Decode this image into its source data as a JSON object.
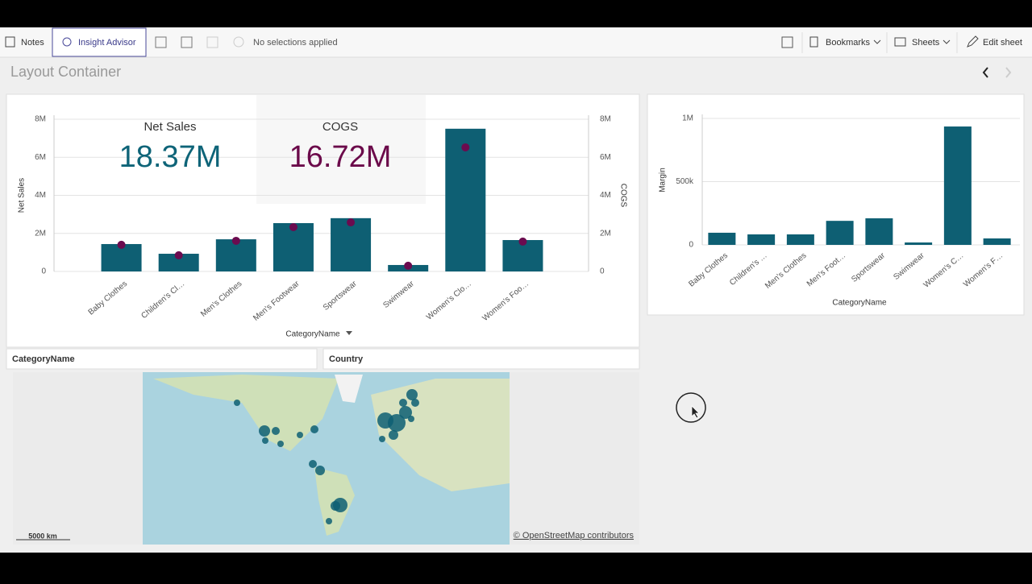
{
  "toolbar": {
    "notes": "Notes",
    "insight_advisor": "Insight Advisor",
    "selections": "No selections applied",
    "bookmarks": "Bookmarks",
    "sheets": "Sheets",
    "edit_sheet": "Edit sheet"
  },
  "sheet": {
    "title": "Layout Container"
  },
  "chart_data": [
    {
      "type": "combo",
      "x_label": "CategoryName",
      "categories": [
        "Baby Clothes",
        "Children's Cl…",
        "Men's Clothes",
        "Men's Footwear",
        "Sportswear",
        "Swimwear",
        "Women's Clo…",
        "Women's Foo…"
      ],
      "series": [
        {
          "name": "Net Sales",
          "type": "bar",
          "color": "#0e5f73",
          "values": [
            1440000,
            930000,
            1690000,
            2540000,
            2800000,
            340000,
            7500000,
            1650000
          ]
        },
        {
          "name": "COGS",
          "type": "marker",
          "axis": "y2",
          "color": "#6b0b4f",
          "values": [
            1400000,
            850000,
            1610000,
            2330000,
            2580000,
            300000,
            6520000,
            1570000
          ]
        }
      ],
      "kpis": [
        {
          "value": 18370000,
          "value_label": "18.37M",
          "color": "#0e6478"
        },
        {
          "value": 16720000,
          "value_label": "16.72M",
          "color": "#6b0a4a"
        }
      ],
      "ylim": [
        0,
        8000000
      ],
      "yticks": [
        0,
        {
          "value": 2000000,
          "label": "2M"
        },
        {
          "value": 4000000,
          "label": "4M"
        },
        {
          "value": 6000000,
          "label": "6M"
        },
        {
          "value": 8000000,
          "label": "8M"
        }
      ],
      "y2lim": [
        0,
        8000000
      ],
      "y2ticks": [
        0,
        {
          "value": 2000000,
          "label": "2M"
        },
        {
          "value": 4000000,
          "label": "4M"
        },
        {
          "value": 6000000,
          "label": "6M"
        },
        {
          "value": 8000000,
          "label": "8M"
        }
      ],
      "grid": true
    },
    {
      "type": "bar",
      "y_label": "Margin",
      "x_label": "CategoryName",
      "categories": [
        "Baby Clothes",
        "Children's …",
        "Men's Clothes",
        "Men's Foot…",
        "Sportswear",
        "Swimwear",
        "Women's C…",
        "Women's F…"
      ],
      "values": [
        96000,
        83000,
        83000,
        190000,
        210000,
        19000,
        936000,
        51000
      ],
      "color": "#0e5f73",
      "ylim": [
        0,
        1000000
      ],
      "yticks": [
        0,
        {
          "value": 500000,
          "label": "500k"
        },
        {
          "value": 1000000,
          "label": "1M"
        }
      ],
      "grid": true
    }
  ],
  "filters": [
    "CategoryName",
    "Country"
  ],
  "map": {
    "scale": "5000 km",
    "attribution": "© OpenStreetMap contributors"
  }
}
